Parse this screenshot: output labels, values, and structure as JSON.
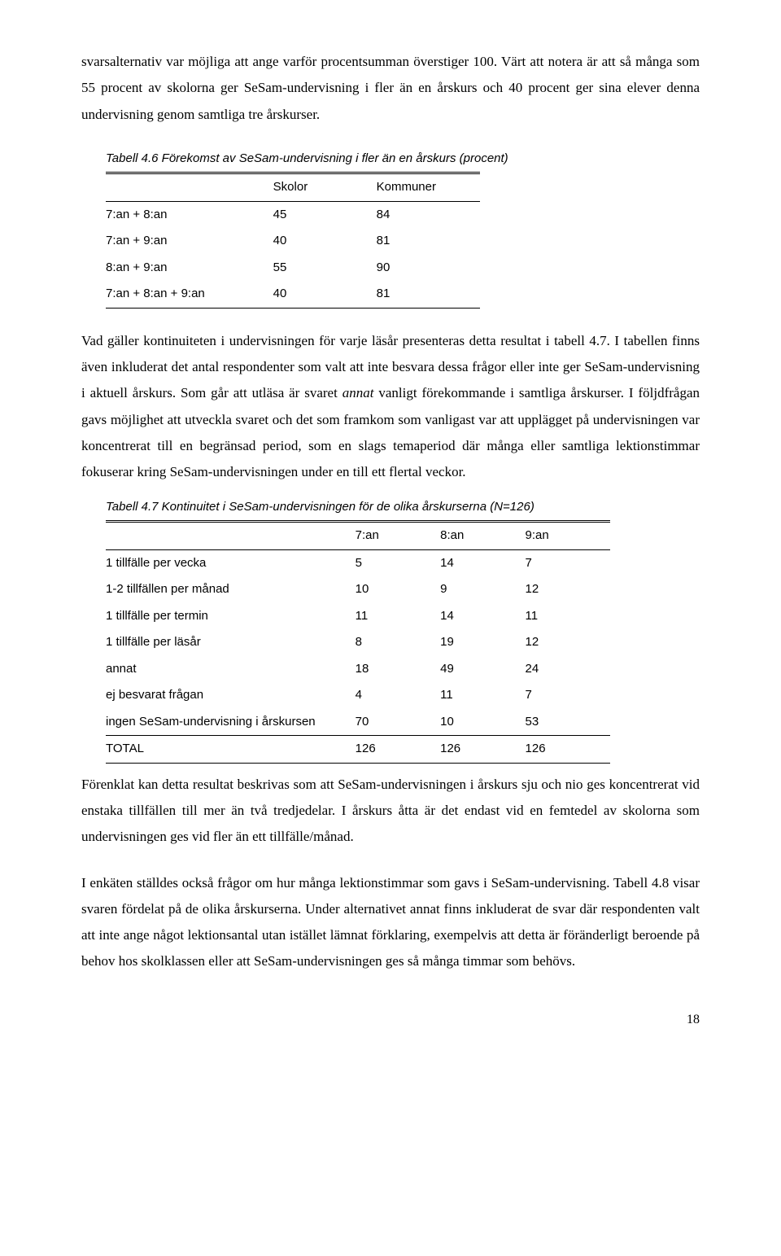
{
  "para1": "svarsalternativ var möjliga att ange varför procentsumman överstiger 100. Värt att notera är att så många som 55 procent av skolorna ger SeSam-undervisning i fler än en årskurs och 40 procent ger sina elever denna undervisning genom samtliga tre årskurser.",
  "table46": {
    "caption": "Tabell 4.6 Förekomst av SeSam-undervisning i fler än en årskurs (procent)",
    "headers": [
      "",
      "Skolor",
      "Kommuner"
    ],
    "rows": [
      [
        "7:an + 8:an",
        "45",
        "84"
      ],
      [
        "7:an + 9:an",
        "40",
        "81"
      ],
      [
        "8:an + 9:an",
        "55",
        "90"
      ],
      [
        "7:an + 8:an + 9:an",
        "40",
        "81"
      ]
    ]
  },
  "para2a": "Vad gäller kontinuiteten i undervisningen för varje läsår presenteras detta resultat i tabell 4.7. I tabellen finns även inkluderat det antal respondenter som valt att inte besvara dessa frågor eller inte ger SeSam-undervisning i aktuell årskurs. Som går att utläsa är svaret ",
  "para2_em": "annat",
  "para2b": " vanligt förekommande i samtliga årskurser. I följdfrågan gavs möjlighet att utveckla svaret och det som framkom som vanligast var att upplägget på undervisningen var koncentrerat till en begränsad period, som en slags temaperiod där många eller samtliga lektionstimmar fokuserar kring SeSam-undervisningen under en till ett flertal veckor.",
  "table47": {
    "caption": "Tabell 4.7 Kontinuitet i SeSam-undervisningen för de olika årskurserna (N=126)",
    "headers": [
      "",
      "7:an",
      "8:an",
      "9:an"
    ],
    "rows": [
      [
        "1 tillfälle per vecka",
        "5",
        "14",
        "7"
      ],
      [
        "1-2 tillfällen per månad",
        "10",
        "9",
        "12"
      ],
      [
        "1 tillfälle per termin",
        "11",
        "14",
        "11"
      ],
      [
        "1 tillfälle per läsår",
        "8",
        "19",
        "12"
      ],
      [
        "annat",
        "18",
        "49",
        "24"
      ],
      [
        "ej besvarat frågan",
        "4",
        "11",
        "7"
      ],
      [
        "ingen SeSam-undervisning i årskursen",
        "70",
        "10",
        "53"
      ]
    ],
    "total": [
      "TOTAL",
      "126",
      "126",
      "126"
    ]
  },
  "para3": "Förenklat kan detta resultat beskrivas som att SeSam-undervisningen i årskurs sju och nio ges koncentrerat vid enstaka tillfällen till mer än två tredjedelar. I årskurs åtta är det endast vid en femtedel av skolorna som undervisningen ges vid fler än ett tillfälle/månad.",
  "para4": "I enkäten ställdes också frågor om hur många lektionstimmar som gavs i SeSam-undervisning. Tabell 4.8 visar svaren fördelat på de olika årskurserna. Under alternativet annat finns inkluderat de svar där respondenten valt att inte ange något lektionsantal utan istället lämnat förklaring, exempelvis att detta är föränderligt beroende på behov hos skolklassen eller att SeSam-undervisningen ges så många timmar som behövs.",
  "pageNumber": "18"
}
